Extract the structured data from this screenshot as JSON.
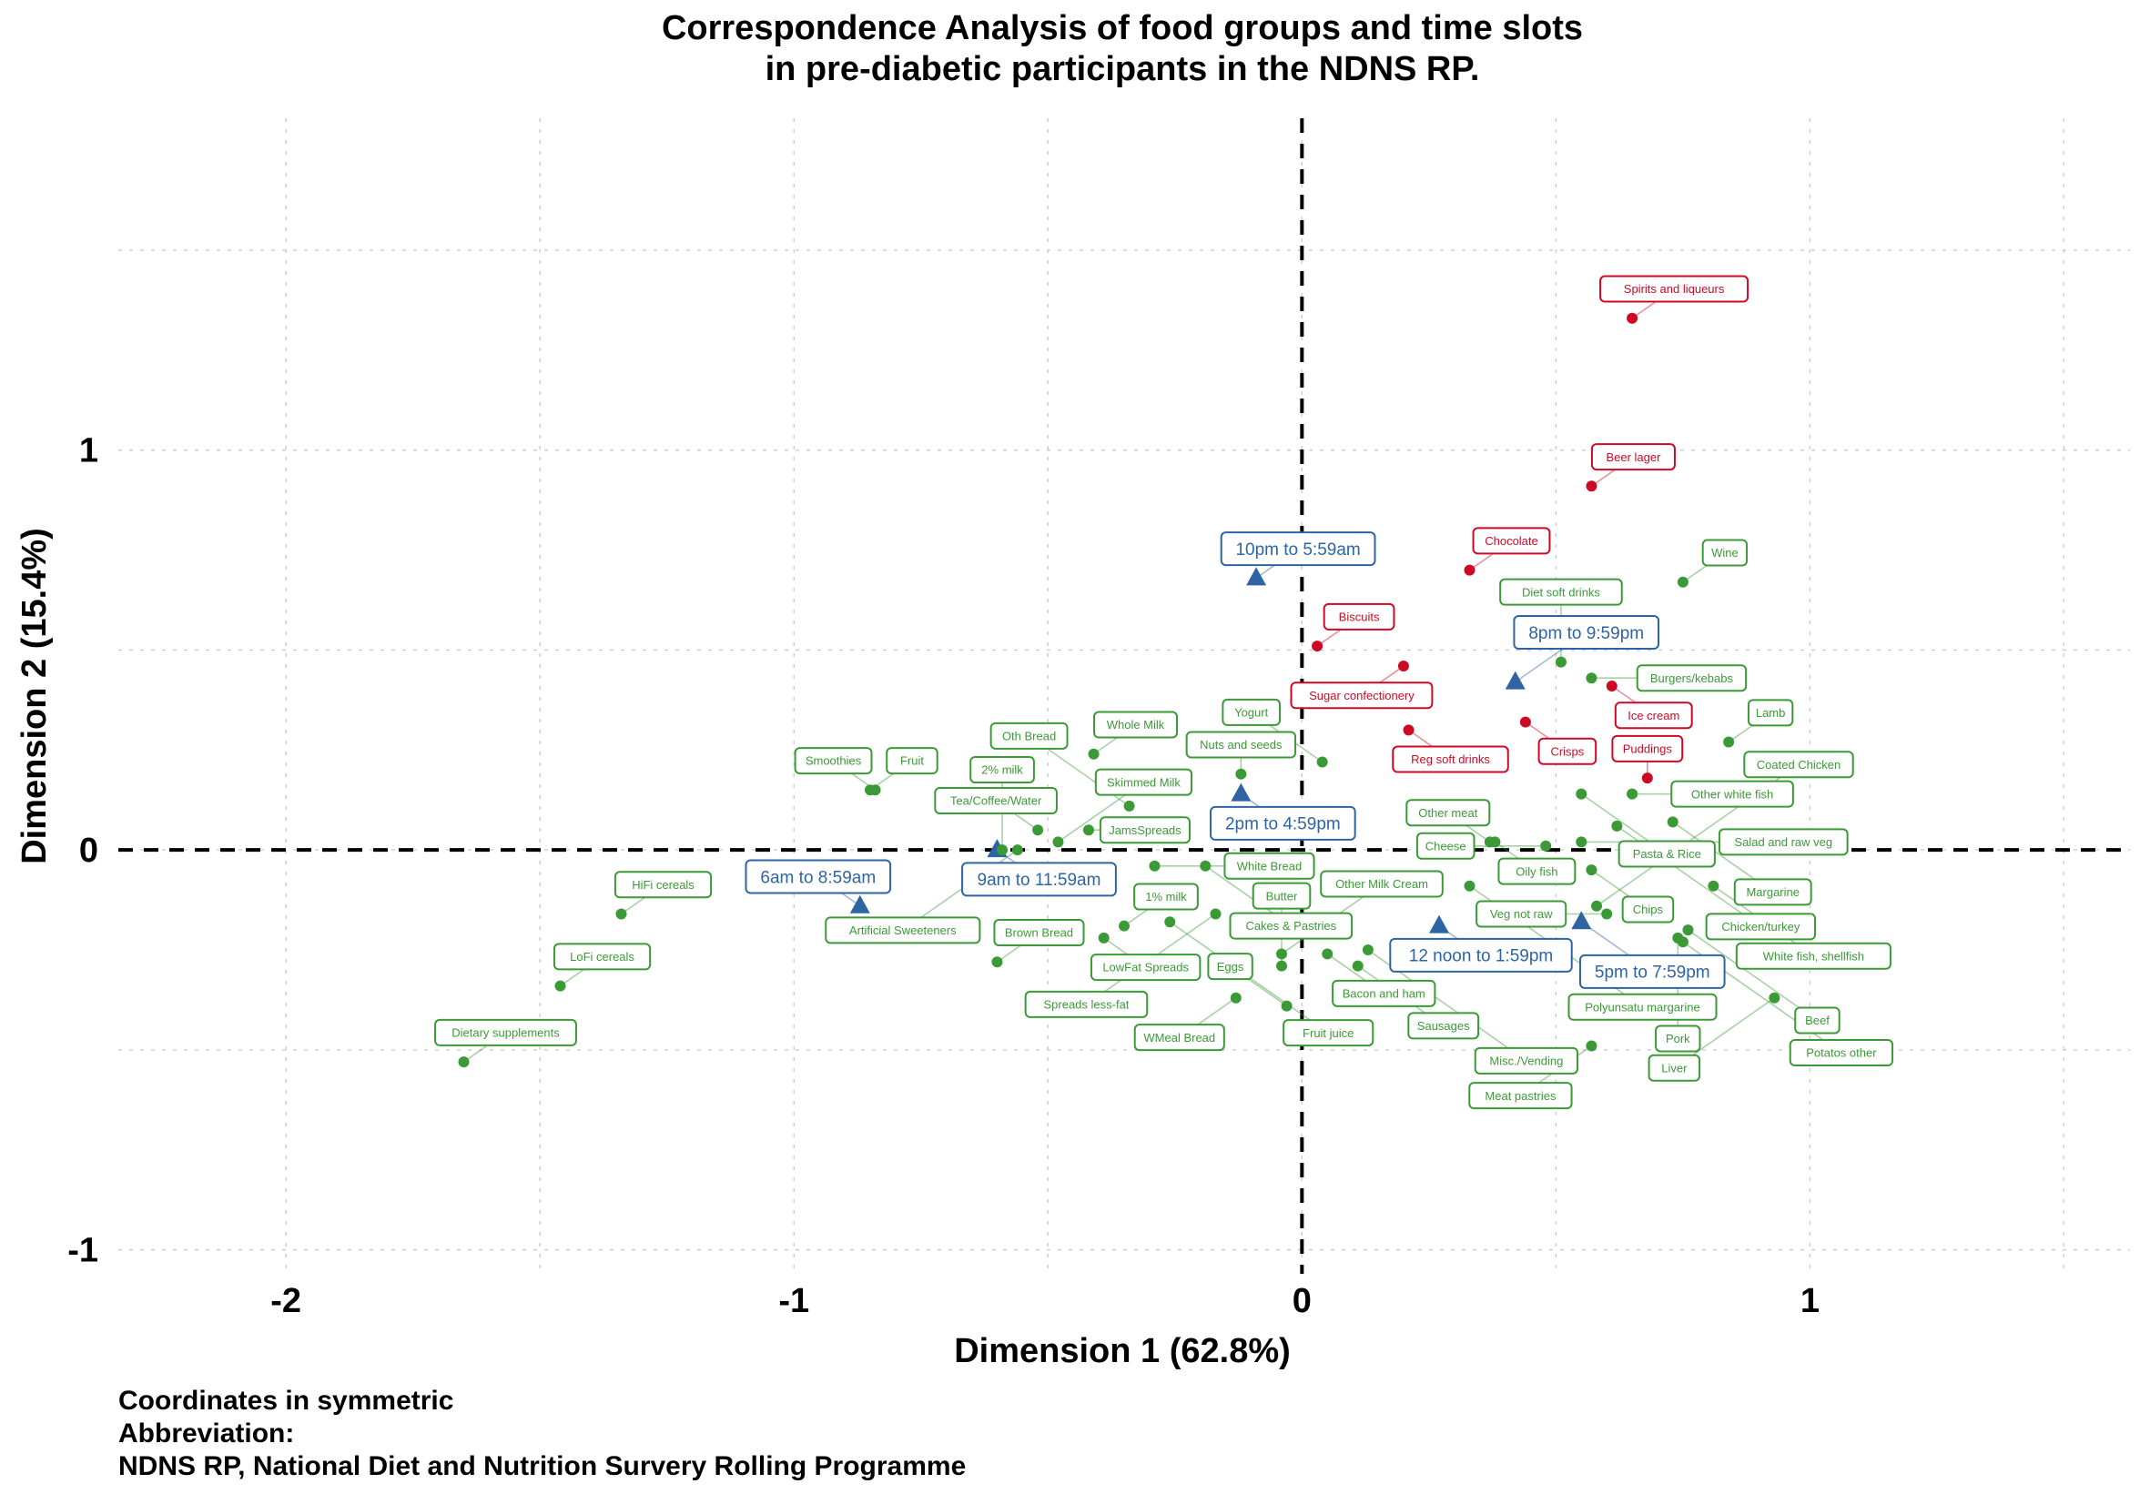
{
  "chart_data": {
    "type": "scatter",
    "title": "Correspondence Analysis of food groups and time slots",
    "subtitle": "in pre-diabetic participants in the NDNS RP.",
    "xlabel": "Dimension 1 (62.8%)",
    "ylabel": "Dimension 2 (15.4%)",
    "xlim": [
      -2.33,
      1.63
    ],
    "ylim": [
      -1.06,
      1.83
    ],
    "x_ticks": [
      -2,
      -1,
      0,
      1
    ],
    "y_ticks": [
      -1,
      0,
      1
    ],
    "grid": true,
    "reference_lines": {
      "x": 0,
      "y": 0,
      "style": "dashed"
    },
    "colors": {
      "time_slot": "#2f64a3",
      "food_red": "#cc0a25",
      "food_green": "#3b9a36",
      "grid": "#cfcfcf"
    },
    "series": [
      {
        "group": "time_slots",
        "marker": "triangle",
        "color": "#2f64a3",
        "points": [
          {
            "label": "10pm to 5:59am",
            "x": -0.09,
            "y": 0.68
          },
          {
            "label": "8pm to 9:59pm",
            "x": 0.42,
            "y": 0.42
          },
          {
            "label": "2pm to 4:59pm",
            "x": -0.12,
            "y": 0.14
          },
          {
            "label": "9am to 11:59am",
            "x": -0.6,
            "y": 0.0
          },
          {
            "label": "6am to 8:59am",
            "x": -0.87,
            "y": -0.14
          },
          {
            "label": "12 noon to 1:59pm",
            "x": 0.27,
            "y": -0.19
          },
          {
            "label": "5pm to 7:59pm",
            "x": 0.55,
            "y": -0.18
          }
        ]
      },
      {
        "group": "foods_dim2_positive",
        "marker": "circle",
        "color": "#cc0a25",
        "points": [
          {
            "label": "Spirits and liqueurs",
            "x": 0.65,
            "y": 1.33
          },
          {
            "label": "Beer lager",
            "x": 0.57,
            "y": 0.91
          },
          {
            "label": "Chocolate",
            "x": 0.33,
            "y": 0.7
          },
          {
            "label": "Sugar confectionery",
            "x": 0.2,
            "y": 0.46
          },
          {
            "label": "Biscuits",
            "x": 0.03,
            "y": 0.51
          },
          {
            "label": "Reg soft drinks",
            "x": 0.21,
            "y": 0.3
          },
          {
            "label": "Crisps",
            "x": 0.44,
            "y": 0.32
          },
          {
            "label": "Ice cream",
            "x": 0.61,
            "y": 0.41
          },
          {
            "label": "Puddings",
            "x": 0.68,
            "y": 0.18
          }
        ]
      },
      {
        "group": "foods",
        "marker": "circle",
        "color": "#3b9a36",
        "points": [
          {
            "label": "Fruit",
            "x": -0.85,
            "y": 0.15
          },
          {
            "label": "Tea/Coffee/Water",
            "x": -0.52,
            "y": 0.05
          },
          {
            "label": "Artificial Sweeteners",
            "x": -0.56,
            "y": 0.0
          },
          {
            "label": "Whole Milk",
            "x": -0.41,
            "y": 0.24
          },
          {
            "label": "Skimmed Milk",
            "x": -0.48,
            "y": 0.02
          },
          {
            "label": "Smoothies",
            "x": -0.84,
            "y": 0.15
          },
          {
            "label": "JamsSpreads",
            "x": -0.42,
            "y": 0.05
          },
          {
            "label": "2% milk",
            "x": -0.59,
            "y": 0.0
          },
          {
            "label": "Nuts and seeds",
            "x": -0.12,
            "y": 0.19
          },
          {
            "label": "Oth Bread",
            "x": -0.34,
            "y": 0.11
          },
          {
            "label": "Yogurt",
            "x": 0.04,
            "y": 0.22
          },
          {
            "label": "Cakes & Pastries",
            "x": -0.19,
            "y": -0.04
          },
          {
            "label": "White Bread",
            "x": -0.29,
            "y": -0.04
          },
          {
            "label": "Brown Bread",
            "x": -0.6,
            "y": -0.28
          },
          {
            "label": "1% milk",
            "x": -0.35,
            "y": -0.19
          },
          {
            "label": "LowFat Spreads",
            "x": -0.39,
            "y": -0.22
          },
          {
            "label": "Spreads less-fat",
            "x": -0.17,
            "y": -0.16
          },
          {
            "label": "Fruit juice",
            "x": -0.26,
            "y": -0.18
          },
          {
            "label": "Other Milk Cream",
            "x": -0.04,
            "y": -0.26
          },
          {
            "label": "WMeal Bread",
            "x": -0.13,
            "y": -0.37
          },
          {
            "label": "Eggs",
            "x": -0.03,
            "y": -0.39
          },
          {
            "label": "Bacon and ham",
            "x": 0.05,
            "y": -0.26
          },
          {
            "label": "Butter",
            "x": -0.04,
            "y": -0.29
          },
          {
            "label": "Sausages",
            "x": 0.11,
            "y": -0.29
          },
          {
            "label": "Misc./Vending",
            "x": 0.13,
            "y": -0.25
          },
          {
            "label": "Other meat",
            "x": 0.37,
            "y": 0.02
          },
          {
            "label": "Oily fish",
            "x": 0.38,
            "y": 0.02
          },
          {
            "label": "Pasta & Rice",
            "x": 0.55,
            "y": 0.14
          },
          {
            "label": "Cheese",
            "x": 0.48,
            "y": 0.01
          },
          {
            "label": "Polyunsatu margarine",
            "x": 0.33,
            "y": -0.09
          },
          {
            "label": "Diet soft drinks",
            "x": 0.51,
            "y": 0.47
          },
          {
            "label": "Burgers/kebabs",
            "x": 0.57,
            "y": 0.43
          },
          {
            "label": "Wine",
            "x": 0.75,
            "y": 0.67
          },
          {
            "label": "Other white fish",
            "x": 0.65,
            "y": 0.14
          },
          {
            "label": "Lamb",
            "x": 0.84,
            "y": 0.27
          },
          {
            "label": "Chicken/turkey",
            "x": 0.62,
            "y": 0.06
          },
          {
            "label": "Margarine",
            "x": 0.73,
            "y": 0.07
          },
          {
            "label": "Salad and raw veg",
            "x": 0.55,
            "y": 0.02
          },
          {
            "label": "White fish, shellfish",
            "x": 0.81,
            "y": -0.09
          },
          {
            "label": "Chips",
            "x": 0.57,
            "y": -0.05
          },
          {
            "label": "Beef",
            "x": 0.76,
            "y": -0.2
          },
          {
            "label": "Veg not raw",
            "x": 0.6,
            "y": -0.16
          },
          {
            "label": "Pork",
            "x": 0.74,
            "y": -0.22
          },
          {
            "label": "Coated Chicken",
            "x": 0.58,
            "y": -0.14
          },
          {
            "label": "Potatos other",
            "x": 0.75,
            "y": -0.23
          },
          {
            "label": "Liver",
            "x": 0.93,
            "y": -0.37
          },
          {
            "label": "Meat pastries",
            "x": 0.57,
            "y": -0.49
          },
          {
            "label": "HiFi cereals",
            "x": -1.34,
            "y": -0.16
          },
          {
            "label": "LoFi cereals",
            "x": -1.46,
            "y": -0.34
          },
          {
            "label": "Dietary supplements",
            "x": -1.65,
            "y": -0.53
          }
        ]
      }
    ]
  },
  "notes": [
    "Coordinates in symmetric",
    "Abbreviation:",
    "NDNS RP, National Diet and Nutrition Survery Rolling Programme"
  ]
}
